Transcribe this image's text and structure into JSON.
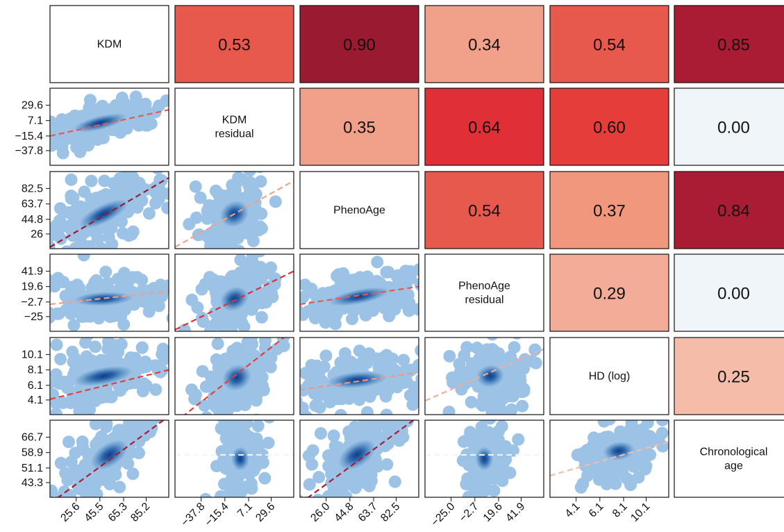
{
  "chart_data": {
    "type": "pair-plot",
    "variables": [
      "KDM",
      "KDM\nresidual",
      "PhenoAge",
      "PhenoAge\nresidual",
      "HD (log)",
      "Chronological\nage"
    ],
    "correlations": [
      {
        "row": 0,
        "col": 1,
        "value": "0.53",
        "color": "#e8594d"
      },
      {
        "row": 0,
        "col": 2,
        "value": "0.90",
        "color": "#9a1a31"
      },
      {
        "row": 0,
        "col": 3,
        "value": "0.34",
        "color": "#f1a189"
      },
      {
        "row": 0,
        "col": 4,
        "value": "0.54",
        "color": "#e8594d"
      },
      {
        "row": 0,
        "col": 5,
        "value": "0.85",
        "color": "#a91c34"
      },
      {
        "row": 1,
        "col": 2,
        "value": "0.35",
        "color": "#f1a189"
      },
      {
        "row": 1,
        "col": 3,
        "value": "0.64",
        "color": "#e02f36"
      },
      {
        "row": 1,
        "col": 4,
        "value": "0.60",
        "color": "#e53e3a"
      },
      {
        "row": 1,
        "col": 5,
        "value": "0.00",
        "color": "#f0f5f9"
      },
      {
        "row": 2,
        "col": 3,
        "value": "0.54",
        "color": "#e8594d"
      },
      {
        "row": 2,
        "col": 4,
        "value": "0.37",
        "color": "#f0977e"
      },
      {
        "row": 2,
        "col": 5,
        "value": "0.84",
        "color": "#a91c34"
      },
      {
        "row": 3,
        "col": 4,
        "value": "0.29",
        "color": "#f2ac97"
      },
      {
        "row": 3,
        "col": 5,
        "value": "0.00",
        "color": "#f0f5f9"
      },
      {
        "row": 4,
        "col": 5,
        "value": "0.25",
        "color": "#f4bca9"
      }
    ],
    "ticks": [
      [
        "25.6",
        "45.5",
        "65.3",
        "85.2"
      ],
      [
        "−37.8",
        "−15.4",
        "7.1",
        "29.6"
      ],
      [
        "26.0",
        "44.8",
        "63.7",
        "82.5"
      ],
      [
        "−25.0",
        "−2.7",
        "19.6",
        "41.9"
      ],
      [
        "4.1",
        "6.1",
        "8.1",
        "10.1"
      ],
      [
        "43.3",
        "51.1",
        "58.9",
        "66.7"
      ]
    ],
    "y_tick_labels": [
      [],
      [
        "29.6",
        "7.1",
        "−15.4",
        "−37.8"
      ],
      [
        "82.5",
        "63.7",
        "44.8",
        "26"
      ],
      [
        "41.9",
        "19.6",
        "−2.7",
        "−25"
      ],
      [
        "10.1",
        "8.1",
        "6.1",
        "4.1"
      ],
      [
        "66.7",
        "58.9",
        "51.1",
        "43.3"
      ]
    ],
    "lower_panels": [
      {
        "row": 1,
        "col": 0,
        "fit_color": "#e8594d",
        "centre": [
          0.42,
          0.45
        ],
        "spread": [
          0.55,
          0.26
        ],
        "tilt": -0.28,
        "fit_y": [
          0.62,
          0.28
        ]
      },
      {
        "row": 2,
        "col": 0,
        "fit_color": "#9a1a31",
        "centre": [
          0.45,
          0.55
        ],
        "spread": [
          0.55,
          0.4
        ],
        "tilt": -0.55,
        "fit_y": [
          0.98,
          0.08
        ]
      },
      {
        "row": 2,
        "col": 1,
        "fit_color": "#f1a189",
        "centre": [
          0.5,
          0.55
        ],
        "spread": [
          0.3,
          0.55
        ],
        "tilt": -0.7,
        "fit_y": [
          0.98,
          0.12
        ]
      },
      {
        "row": 3,
        "col": 0,
        "fit_color": "#f1a189",
        "centre": [
          0.45,
          0.58
        ],
        "spread": [
          0.6,
          0.3
        ],
        "tilt": -0.05,
        "fit_y": [
          0.65,
          0.48
        ]
      },
      {
        "row": 3,
        "col": 1,
        "fit_color": "#e02f36",
        "centre": [
          0.5,
          0.58
        ],
        "spread": [
          0.3,
          0.5
        ],
        "tilt": -0.6,
        "fit_y": [
          0.98,
          0.22
        ]
      },
      {
        "row": 3,
        "col": 2,
        "fit_color": "#e8594d",
        "centre": [
          0.5,
          0.55
        ],
        "spread": [
          0.62,
          0.32
        ],
        "tilt": -0.22,
        "fit_y": [
          0.65,
          0.42
        ]
      },
      {
        "row": 4,
        "col": 0,
        "fit_color": "#e53e3a",
        "centre": [
          0.45,
          0.5
        ],
        "spread": [
          0.6,
          0.38
        ],
        "tilt": -0.2,
        "fit_y": [
          0.8,
          0.42
        ]
      },
      {
        "row": 4,
        "col": 1,
        "fit_color": "#e53e3a",
        "centre": [
          0.52,
          0.52
        ],
        "spread": [
          0.3,
          0.55
        ],
        "tilt": -0.6,
        "fit_y": [
          1.1,
          -0.1
        ]
      },
      {
        "row": 4,
        "col": 2,
        "fit_color": "#f0977e",
        "centre": [
          0.48,
          0.55
        ],
        "spread": [
          0.6,
          0.35
        ],
        "tilt": -0.1,
        "fit_y": [
          0.68,
          0.45
        ]
      },
      {
        "row": 4,
        "col": 3,
        "fit_color": "#f2ac97",
        "centre": [
          0.55,
          0.5
        ],
        "spread": [
          0.28,
          0.48
        ],
        "tilt": -0.2,
        "fit_y": [
          0.82,
          0.15
        ]
      },
      {
        "row": 5,
        "col": 0,
        "fit_color": "#a91c34",
        "centre": [
          0.5,
          0.45
        ],
        "spread": [
          0.42,
          0.5
        ],
        "tilt": -0.75,
        "fit_y": [
          1.08,
          -0.05
        ]
      },
      {
        "row": 5,
        "col": 1,
        "fit_color": "#f0f5f9",
        "centre": [
          0.55,
          0.5
        ],
        "spread": [
          0.18,
          0.52
        ],
        "tilt": 0.0,
        "fit_y": [
          0.45,
          0.45
        ]
      },
      {
        "row": 5,
        "col": 2,
        "fit_color": "#a91c34",
        "centre": [
          0.48,
          0.45
        ],
        "spread": [
          0.42,
          0.52
        ],
        "tilt": -0.75,
        "fit_y": [
          1.08,
          -0.05
        ]
      },
      {
        "row": 5,
        "col": 3,
        "fit_color": "#f0f5f9",
        "centre": [
          0.5,
          0.5
        ],
        "spread": [
          0.18,
          0.52
        ],
        "tilt": 0.0,
        "fit_y": [
          0.45,
          0.45
        ]
      },
      {
        "row": 5,
        "col": 4,
        "fit_color": "#f4bca9",
        "centre": [
          0.58,
          0.4
        ],
        "spread": [
          0.32,
          0.4
        ],
        "tilt": -0.15,
        "fit_y": [
          0.72,
          0.28
        ]
      }
    ]
  }
}
